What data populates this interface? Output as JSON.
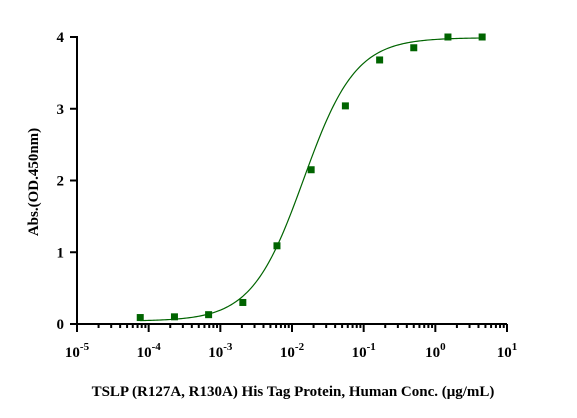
{
  "chart_data": {
    "type": "scatter",
    "title": "",
    "xlabel": "TSLP (R127A, R130A) His Tag Protein, Human  Conc. (μg/mL)",
    "ylabel": "Abs.(OD.450nm)",
    "x_scale": "log",
    "xlim": [
      1e-05,
      10
    ],
    "ylim": [
      0,
      4
    ],
    "grid": false,
    "legend": "none",
    "x_tick_labels": [
      {
        "value": 1e-05,
        "base": "10",
        "exp": "-5"
      },
      {
        "value": 0.0001,
        "base": "10",
        "exp": "-4"
      },
      {
        "value": 0.001,
        "base": "10",
        "exp": "-3"
      },
      {
        "value": 0.01,
        "base": "10",
        "exp": "-2"
      },
      {
        "value": 0.1,
        "base": "10",
        "exp": "-1"
      },
      {
        "value": 1,
        "base": "10",
        "exp": "0"
      },
      {
        "value": 10,
        "base": "10",
        "exp": "1"
      }
    ],
    "y_tick_labels": [
      {
        "value": 0,
        "text": "0"
      },
      {
        "value": 1,
        "text": "1"
      },
      {
        "value": 2,
        "text": "2"
      },
      {
        "value": 3,
        "text": "3"
      },
      {
        "value": 4,
        "text": "4"
      }
    ],
    "series": [
      {
        "marker": "square",
        "color": "#006400",
        "x": [
          7.63e-05,
          0.000229,
          0.000686,
          0.00206,
          0.00617,
          0.0185,
          0.0556,
          0.167,
          0.5,
          1.5,
          4.5
        ],
        "y": [
          0.09,
          0.1,
          0.13,
          0.3,
          1.09,
          2.15,
          3.04,
          3.68,
          3.85,
          4.0,
          4.0
        ]
      }
    ],
    "fit_curve": {
      "type": "4PL",
      "color": "#006400",
      "bottom": 0.04,
      "top": 3.99,
      "ec50": 0.0145,
      "hill": 1.2
    }
  }
}
